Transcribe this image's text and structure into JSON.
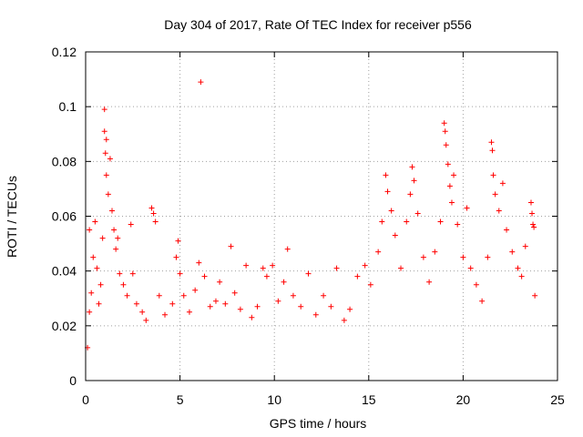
{
  "chart_data": {
    "type": "scatter",
    "title": "Day 304 of 2017, Rate Of TEC Index for receiver p556",
    "xlabel": "GPS time / hours",
    "ylabel": "ROTI / TECUs",
    "xlim": [
      0,
      25
    ],
    "ylim": [
      0,
      0.12
    ],
    "x_ticks": [
      0,
      5,
      10,
      15,
      20,
      25
    ],
    "y_ticks": [
      0,
      0.02,
      0.04,
      0.06,
      0.08,
      0.1,
      0.12
    ],
    "x_tick_labels": [
      "0",
      "5",
      "10",
      "15",
      "20",
      "25"
    ],
    "y_tick_labels": [
      "0",
      "0.02",
      "0.04",
      "0.06",
      "0.08",
      "0.1",
      "0.12"
    ],
    "grid": true,
    "marker": "+",
    "series_color": "#ff0000",
    "series": [
      {
        "name": "p556",
        "points": [
          [
            0.1,
            0.012
          ],
          [
            0.2,
            0.025
          ],
          [
            0.2,
            0.055
          ],
          [
            0.3,
            0.032
          ],
          [
            0.4,
            0.045
          ],
          [
            0.5,
            0.058
          ],
          [
            0.6,
            0.041
          ],
          [
            0.7,
            0.028
          ],
          [
            0.8,
            0.035
          ],
          [
            0.9,
            0.052
          ],
          [
            1.0,
            0.099
          ],
          [
            1.0,
            0.091
          ],
          [
            1.05,
            0.083
          ],
          [
            1.1,
            0.088
          ],
          [
            1.1,
            0.075
          ],
          [
            1.2,
            0.068
          ],
          [
            1.3,
            0.081
          ],
          [
            1.4,
            0.062
          ],
          [
            1.5,
            0.055
          ],
          [
            1.6,
            0.048
          ],
          [
            1.7,
            0.052
          ],
          [
            1.8,
            0.039
          ],
          [
            2.0,
            0.035
          ],
          [
            2.2,
            0.031
          ],
          [
            2.4,
            0.057
          ],
          [
            2.5,
            0.039
          ],
          [
            2.7,
            0.028
          ],
          [
            3.0,
            0.025
          ],
          [
            3.2,
            0.022
          ],
          [
            3.5,
            0.063
          ],
          [
            3.6,
            0.061
          ],
          [
            3.7,
            0.058
          ],
          [
            3.9,
            0.031
          ],
          [
            4.2,
            0.024
          ],
          [
            4.6,
            0.028
          ],
          [
            4.8,
            0.045
          ],
          [
            4.9,
            0.051
          ],
          [
            5.0,
            0.039
          ],
          [
            5.2,
            0.031
          ],
          [
            5.5,
            0.025
          ],
          [
            5.8,
            0.033
          ],
          [
            6.0,
            0.043
          ],
          [
            6.1,
            0.109
          ],
          [
            6.3,
            0.038
          ],
          [
            6.6,
            0.027
          ],
          [
            6.9,
            0.029
          ],
          [
            7.1,
            0.036
          ],
          [
            7.4,
            0.028
          ],
          [
            7.7,
            0.049
          ],
          [
            7.9,
            0.032
          ],
          [
            8.2,
            0.026
          ],
          [
            8.5,
            0.042
          ],
          [
            8.8,
            0.023
          ],
          [
            9.1,
            0.027
          ],
          [
            9.4,
            0.041
          ],
          [
            9.6,
            0.038
          ],
          [
            9.9,
            0.042
          ],
          [
            10.2,
            0.029
          ],
          [
            10.5,
            0.036
          ],
          [
            10.7,
            0.048
          ],
          [
            11.0,
            0.031
          ],
          [
            11.4,
            0.027
          ],
          [
            11.8,
            0.039
          ],
          [
            12.2,
            0.024
          ],
          [
            12.6,
            0.031
          ],
          [
            13.0,
            0.027
          ],
          [
            13.3,
            0.041
          ],
          [
            13.7,
            0.022
          ],
          [
            14.0,
            0.026
          ],
          [
            14.4,
            0.038
          ],
          [
            14.8,
            0.042
          ],
          [
            15.1,
            0.035
          ],
          [
            15.5,
            0.047
          ],
          [
            15.7,
            0.058
          ],
          [
            15.9,
            0.075
          ],
          [
            16.0,
            0.069
          ],
          [
            16.2,
            0.062
          ],
          [
            16.4,
            0.053
          ],
          [
            16.7,
            0.041
          ],
          [
            17.0,
            0.058
          ],
          [
            17.2,
            0.068
          ],
          [
            17.3,
            0.078
          ],
          [
            17.4,
            0.073
          ],
          [
            17.6,
            0.061
          ],
          [
            17.9,
            0.045
          ],
          [
            18.2,
            0.036
          ],
          [
            18.5,
            0.047
          ],
          [
            18.8,
            0.058
          ],
          [
            19.0,
            0.094
          ],
          [
            19.05,
            0.091
          ],
          [
            19.1,
            0.086
          ],
          [
            19.2,
            0.079
          ],
          [
            19.3,
            0.071
          ],
          [
            19.4,
            0.065
          ],
          [
            19.5,
            0.075
          ],
          [
            19.7,
            0.057
          ],
          [
            20.0,
            0.045
          ],
          [
            20.2,
            0.063
          ],
          [
            20.4,
            0.041
          ],
          [
            20.7,
            0.035
          ],
          [
            21.0,
            0.029
          ],
          [
            21.3,
            0.045
          ],
          [
            21.5,
            0.087
          ],
          [
            21.55,
            0.084
          ],
          [
            21.6,
            0.075
          ],
          [
            21.7,
            0.068
          ],
          [
            21.9,
            0.062
          ],
          [
            22.1,
            0.072
          ],
          [
            22.3,
            0.055
          ],
          [
            22.6,
            0.047
          ],
          [
            22.9,
            0.041
          ],
          [
            23.1,
            0.038
          ],
          [
            23.3,
            0.049
          ],
          [
            23.6,
            0.065
          ],
          [
            23.65,
            0.061
          ],
          [
            23.7,
            0.057
          ],
          [
            23.75,
            0.056
          ],
          [
            23.8,
            0.031
          ]
        ]
      }
    ]
  }
}
